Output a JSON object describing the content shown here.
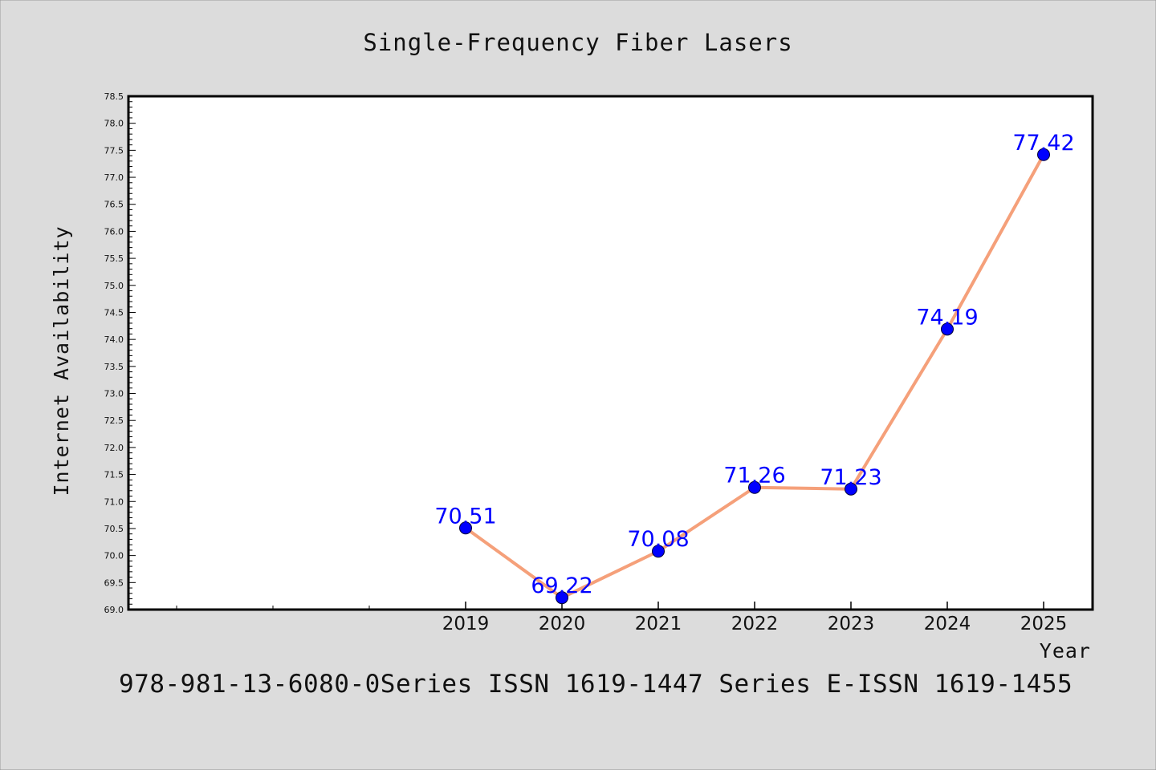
{
  "chart_data": {
    "type": "line",
    "title": "Single-Frequency Fiber Lasers",
    "xlabel": "Year",
    "ylabel": "Internet Availability",
    "categories": [
      "2019",
      "2020",
      "2021",
      "2022",
      "2023",
      "2024",
      "2025"
    ],
    "series": [
      {
        "values": [
          70.51,
          69.22,
          70.08,
          71.26,
          71.23,
          74.19,
          77.42
        ]
      }
    ],
    "data_labels": [
      "70.51",
      "69.22",
      "70.08",
      "71.26",
      "71.23",
      "74.19",
      "77.42"
    ],
    "ylim": [
      69.0,
      78.5
    ],
    "y_ticks": [
      "69.0",
      "69.5",
      "70.0",
      "70.5",
      "71.0",
      "71.5",
      "72.0",
      "72.5",
      "73.0",
      "73.5",
      "74.0",
      "74.5",
      "75.0",
      "75.5",
      "76.0",
      "76.5",
      "77.0",
      "77.5",
      "78.0",
      "78.5"
    ],
    "grid": false,
    "colors": {
      "background": "#dcdcdc",
      "plot_background": "#ffffff",
      "line": "#f5a07a",
      "marker": "#0000ff",
      "data_label": "#0000ff"
    }
  },
  "footer": "978-981-13-6080-0Series ISSN 1619-1447 Series E-ISSN 1619-1455"
}
